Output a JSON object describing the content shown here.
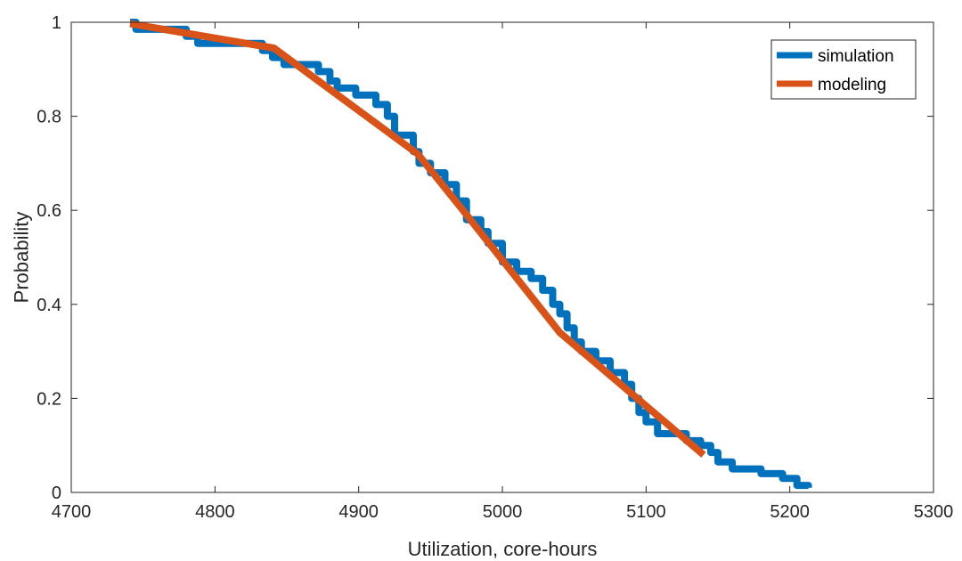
{
  "chart_data": {
    "type": "line",
    "xlabel": "Utilization, core-hours",
    "ylabel": "Probability",
    "xlim": [
      4700,
      5300
    ],
    "ylim": [
      0,
      1
    ],
    "xticks": [
      4700,
      4800,
      4900,
      5000,
      5100,
      5200,
      5300
    ],
    "yticks": [
      0,
      0.2,
      0.4,
      0.6,
      0.8,
      1
    ],
    "xtick_labels": [
      "4700",
      "4800",
      "4900",
      "5000",
      "5100",
      "5200",
      "5300"
    ],
    "ytick_labels": [
      "0",
      "0.2",
      "0.4",
      "0.6",
      "0.8",
      "1"
    ],
    "grid": false,
    "legend_position": "top-right",
    "series": [
      {
        "name": "simulation",
        "color": "#0072BD",
        "step": true,
        "x": [
          4741,
          4745,
          4780,
          4788,
          4800,
          4833,
          4840,
          4848,
          4872,
          4880,
          4885,
          4898,
          4912,
          4920,
          4925,
          4938,
          4942,
          4950,
          4960,
          4968,
          4975,
          4985,
          4990,
          5000,
          5010,
          5020,
          5028,
          5035,
          5040,
          5045,
          5050,
          5055,
          5065,
          5075,
          5085,
          5090,
          5095,
          5100,
          5108,
          5128,
          5138,
          5145,
          5150,
          5160,
          5180,
          5195,
          5205,
          5213
        ],
        "y": [
          1.0,
          0.985,
          0.97,
          0.955,
          0.955,
          0.94,
          0.925,
          0.91,
          0.895,
          0.875,
          0.86,
          0.845,
          0.825,
          0.8,
          0.76,
          0.725,
          0.7,
          0.68,
          0.655,
          0.62,
          0.58,
          0.555,
          0.53,
          0.49,
          0.47,
          0.455,
          0.43,
          0.4,
          0.38,
          0.35,
          0.32,
          0.3,
          0.28,
          0.255,
          0.23,
          0.2,
          0.17,
          0.15,
          0.125,
          0.11,
          0.1,
          0.085,
          0.065,
          0.05,
          0.04,
          0.03,
          0.015,
          0.01
        ]
      },
      {
        "name": "modeling",
        "color": "#D95319",
        "step": false,
        "x": [
          4741,
          4841,
          4941,
          4970,
          5040,
          5140
        ],
        "y": [
          0.997,
          0.945,
          0.72,
          0.61,
          0.34,
          0.08
        ]
      }
    ]
  }
}
